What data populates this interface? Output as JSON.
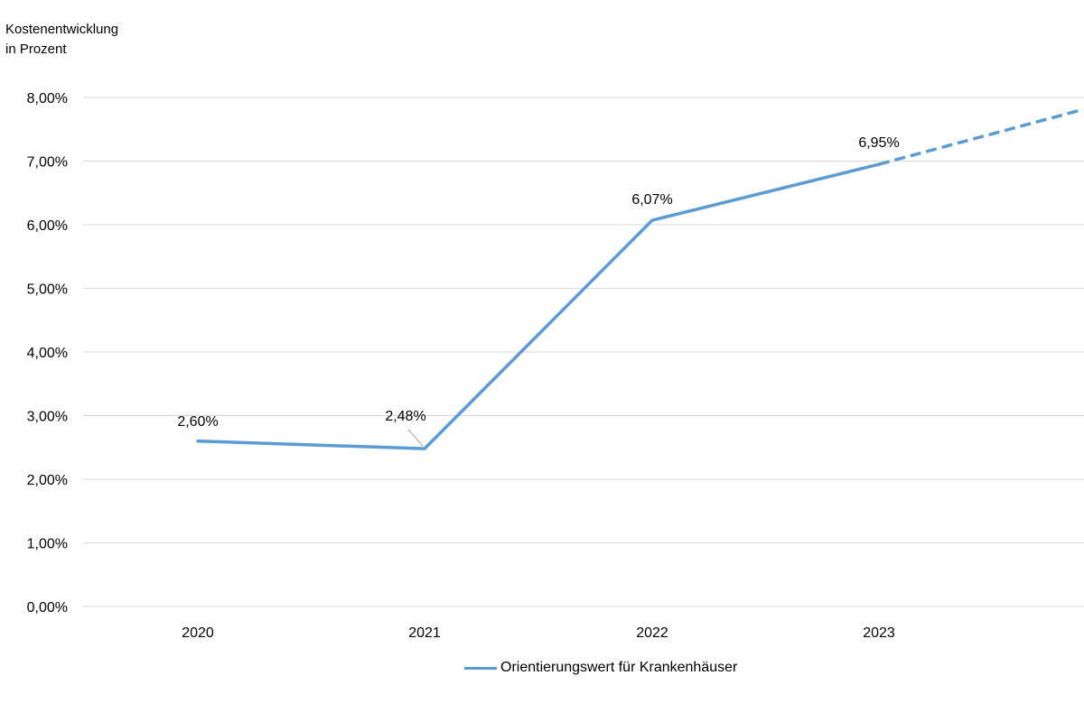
{
  "chart_data": {
    "type": "line",
    "title": "",
    "ylabel_lines": [
      "Kostenentwicklung",
      "in Prozent"
    ],
    "xlabel": "",
    "categories": [
      "2020",
      "2021",
      "2022",
      "2023"
    ],
    "series": [
      {
        "name": "Orientierungswert für Krankenhäuser",
        "values": [
          2.6,
          2.48,
          6.07,
          6.95
        ],
        "value_labels": [
          "2,60%",
          "2,48%",
          "6,07%",
          "6,95%"
        ],
        "color": "#5b9bd5",
        "dashed_extension_to": 7.8
      }
    ],
    "ylim": [
      0,
      8
    ],
    "ytick_values": [
      0,
      1,
      2,
      3,
      4,
      5,
      6,
      7,
      8
    ],
    "ytick_labels": [
      "0,00%",
      "1,00%",
      "2,00%",
      "3,00%",
      "4,00%",
      "5,00%",
      "6,00%",
      "7,00%",
      "8,00%"
    ],
    "grid": true,
    "legend_position": "bottom",
    "colors": {
      "line": "#5b9bd5",
      "grid": "#d9d9d9",
      "text": "#000000"
    }
  }
}
